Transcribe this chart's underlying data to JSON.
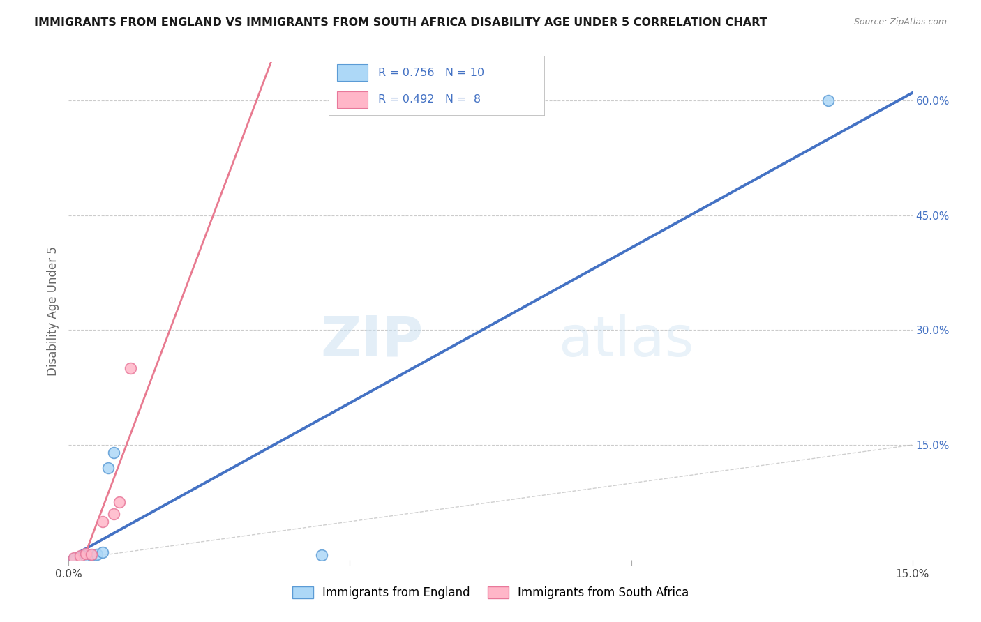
{
  "title": "IMMIGRANTS FROM ENGLAND VS IMMIGRANTS FROM SOUTH AFRICA DISABILITY AGE UNDER 5 CORRELATION CHART",
  "source": "Source: ZipAtlas.com",
  "ylabel": "Disability Age Under 5",
  "xlim": [
    0.0,
    0.15
  ],
  "ylim": [
    0.0,
    0.65
  ],
  "xtick_vals": [
    0.0,
    0.05,
    0.1,
    0.15
  ],
  "ytick_vals": [
    0.15,
    0.3,
    0.45,
    0.6
  ],
  "england_fill_color": "#ADD8F7",
  "england_edge_color": "#5B9BD5",
  "south_africa_fill_color": "#FFB6C8",
  "south_africa_edge_color": "#E8789A",
  "england_line_color": "#4472C4",
  "south_africa_line_color": "#E87A90",
  "dashed_line_color": "#BBBBBB",
  "grid_color": "#CCCCCC",
  "R_england": 0.756,
  "N_england": 10,
  "R_south_africa": 0.492,
  "N_south_africa": 8,
  "england_x": [
    0.001,
    0.002,
    0.003,
    0.004,
    0.005,
    0.006,
    0.007,
    0.008,
    0.045,
    0.135
  ],
  "england_y": [
    0.002,
    0.003,
    0.004,
    0.006,
    0.007,
    0.01,
    0.12,
    0.14,
    0.006,
    0.6
  ],
  "south_africa_x": [
    0.001,
    0.002,
    0.003,
    0.004,
    0.006,
    0.008,
    0.009,
    0.011
  ],
  "south_africa_y": [
    0.003,
    0.005,
    0.008,
    0.007,
    0.05,
    0.06,
    0.075,
    0.25
  ],
  "watermark_text": "ZIPatlas",
  "legend_entries": [
    "Immigrants from England",
    "Immigrants from South Africa"
  ]
}
